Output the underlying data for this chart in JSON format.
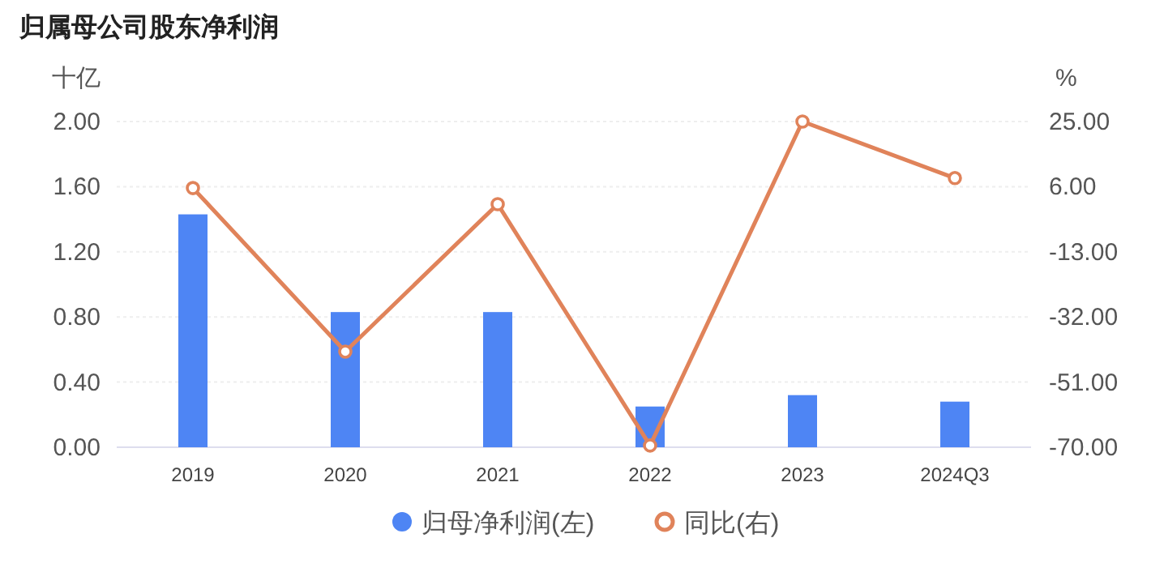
{
  "chart_data": {
    "type": "bar",
    "title": "归属母公司股东净利润",
    "ylabel": "十亿",
    "y2label": "%",
    "categories": [
      "2019",
      "2020",
      "2021",
      "2022",
      "2023",
      "2024Q3"
    ],
    "series": [
      {
        "name": "归母净利润(左)",
        "color": "#4e85f4",
        "values": [
          1.43,
          0.83,
          0.83,
          0.25,
          0.32,
          0.28
        ]
      },
      {
        "name": "同比(右)",
        "type": "line",
        "axis": "y2",
        "color": "#e0835a",
        "marker": "circle",
        "values": [
          5.6,
          -42.1,
          0.9,
          -69.5,
          25,
          8.5
        ]
      }
    ],
    "ylim": [
      0,
      2
    ],
    "yticks": [
      {
        "value": 0,
        "label": "0.00"
      },
      {
        "value": 0.4,
        "label": "0.40"
      },
      {
        "value": 0.8,
        "label": "0.80"
      },
      {
        "value": 1.2,
        "label": "1.20"
      },
      {
        "value": 1.6,
        "label": "1.60"
      },
      {
        "value": 2,
        "label": "2.00"
      }
    ],
    "y2lim": [
      -70,
      25
    ],
    "y2ticks": [
      {
        "value": -70,
        "label": "-70.00"
      },
      {
        "value": -51,
        "label": "-51.00"
      },
      {
        "value": -32,
        "label": "-32.00"
      },
      {
        "value": -13,
        "label": "-13.00"
      },
      {
        "value": 6,
        "label": "6.00"
      },
      {
        "value": 25,
        "label": "25.00"
      }
    ],
    "grid": "y",
    "legend": "bottom"
  }
}
